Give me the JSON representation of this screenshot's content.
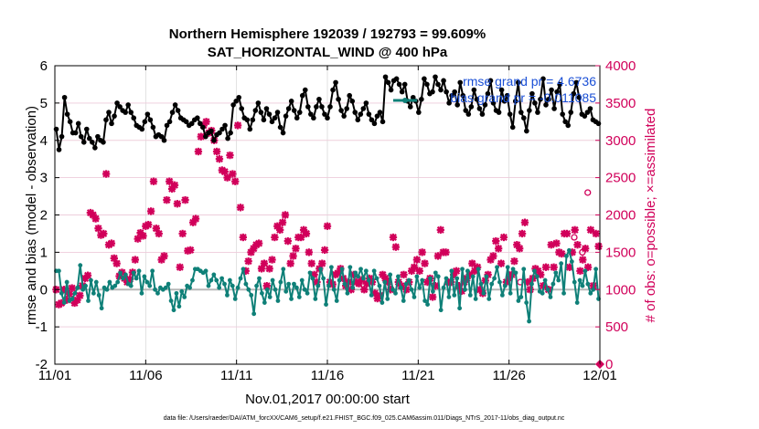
{
  "chart_data": {
    "type": "line",
    "title": "Northern Hemisphere 192039 / 192793 = 99.609%",
    "subtitle": "SAT_HORIZONTAL_WIND @ 400 hPa",
    "xlabel": "Nov.01,2017 00:00:00 start",
    "ylabel": "rmse and bias (model - observation)",
    "y2label": "# of obs: o=possible; ×=assimilated",
    "footnote": "data file: /Users/raeder/DAI/ATM_forcXX/CAM6_setup/f.e21.FHIST_BGC.f09_025.CAM6assim.011/Diags_NTrS_2017-11/obs_diag_output.nc",
    "xlim": [
      0,
      30
    ],
    "ylim": [
      -2,
      6
    ],
    "y2lim": [
      0,
      4000
    ],
    "xticks": [
      0,
      5,
      10,
      15,
      20,
      25,
      30
    ],
    "xticklabels": [
      "11/01",
      "11/06",
      "11/11",
      "11/16",
      "11/21",
      "11/26",
      "12/01"
    ],
    "yticks": [
      -2,
      -1,
      0,
      1,
      2,
      3,
      4,
      5,
      6
    ],
    "yticklabels": [
      "-2",
      "-1",
      "0",
      "1",
      "2",
      "3",
      "4",
      "5",
      "6"
    ],
    "y2ticks": [
      0,
      500,
      1000,
      1500,
      2000,
      2500,
      3000,
      3500,
      4000
    ],
    "y2ticklabels": [
      "0",
      "500",
      "1000",
      "1500",
      "2000",
      "2500",
      "3000",
      "3500",
      "4000"
    ],
    "grid": true,
    "legend_position": "top-right",
    "colors": {
      "rmse": "#000000",
      "bias": "#0f8078",
      "obs": "#d1005a",
      "zero": "#b8b8b8",
      "legend_text": "#1a4fd6"
    },
    "series": [
      {
        "name": "rmse grand pr = 4.6736",
        "axis": "left",
        "values": [
          4.3,
          3.75,
          4.1,
          5.15,
          4.7,
          4.5,
          4.2,
          4.2,
          4.45,
          4.1,
          3.95,
          4.3,
          4.05,
          3.95,
          3.8,
          4.1,
          4.0,
          3.95,
          4.55,
          4.75,
          4.45,
          4.65,
          5.0,
          4.9,
          4.8,
          4.75,
          4.95,
          4.75,
          4.6,
          4.4,
          4.35,
          4.3,
          4.5,
          4.7,
          4.55,
          4.35,
          4.1,
          4.15,
          4.1,
          4.0,
          4.4,
          4.5,
          4.75,
          4.95,
          4.8,
          4.6,
          4.55,
          4.5,
          4.4,
          4.45,
          4.55,
          4.6,
          4.45,
          4.35,
          4.1,
          4.2,
          4.25,
          4.0,
          4.15,
          4.2,
          4.3,
          4.4,
          4.05,
          4.2,
          4.95,
          5.05,
          5.15,
          4.85,
          4.6,
          4.55,
          4.3,
          4.55,
          4.8,
          5.0,
          4.75,
          4.55,
          4.85,
          4.7,
          4.5,
          4.6,
          4.75,
          4.35,
          4.2,
          4.65,
          4.85,
          5.05,
          4.8,
          4.6,
          4.75,
          5.2,
          5.35,
          4.9,
          4.7,
          4.6,
          4.9,
          5.1,
          4.9,
          4.7,
          4.6,
          4.9,
          5.35,
          5.55,
          5.1,
          4.8,
          4.65,
          4.85,
          5.2,
          5.05,
          4.75,
          4.55,
          4.7,
          4.85,
          5.0,
          4.7,
          4.55,
          4.45,
          4.65,
          4.75,
          4.5,
          5.7,
          5.55,
          5.35,
          5.6,
          5.65,
          5.5,
          5.3,
          5.5,
          5.05,
          4.9,
          5.15,
          5.05,
          4.75,
          5.1,
          5.65,
          5.5,
          5.25,
          5.3,
          5.7,
          5.5,
          5.35,
          5.6,
          5.3,
          5.0,
          5.2,
          5.3,
          4.95,
          5.55,
          5.2,
          4.8,
          4.7,
          4.9,
          5.35,
          5.1,
          4.85,
          4.7,
          4.95,
          5.25,
          5.6,
          5.0,
          4.8,
          4.75,
          5.35,
          5.05,
          5.2,
          4.7,
          4.35,
          5.05,
          5.55,
          4.75,
          4.6,
          4.25,
          4.8,
          5.25,
          5.0,
          4.75,
          5.1,
          5.65,
          4.95,
          5.1,
          5.35,
          4.85,
          5.3,
          5.5,
          4.7,
          4.5,
          4.4,
          4.75,
          5.25,
          5.55,
          5.15,
          4.7,
          4.65,
          4.75,
          4.85,
          4.55,
          4.5,
          4.45
        ]
      },
      {
        "name": "bias grand pr = -0.011085",
        "axis": "left",
        "values": [
          0.5,
          0.5,
          -0.1,
          -0.35,
          0.2,
          -0.3,
          -0.25,
          -0.1,
          0.05,
          0.65,
          0.0,
          0.1,
          -0.3,
          0.25,
          -0.1,
          0.2,
          -0.15,
          -0.5,
          0.05,
          0.0,
          0.2,
          0.05,
          0.1,
          0.2,
          0.45,
          0.3,
          0.4,
          0.15,
          0.1,
          0.45,
          0.3,
          0.5,
          -0.1,
          0.35,
          0.2,
          0.1,
          0.5,
          0.0,
          -0.1,
          0.05,
          0.0,
          0.05,
          0.15,
          -0.3,
          -0.55,
          -0.1,
          -0.45,
          -0.05,
          -0.2,
          0.1,
          0.05,
          0.25,
          0.55,
          0.55,
          0.5,
          0.45,
          0.5,
          0.1,
          0.25,
          0.4,
          0.25,
          0.05,
          0.3,
          0.15,
          -0.15,
          0.25,
          0.1,
          -0.25,
          0.05,
          0.3,
          0.55,
          0.15,
          0.0,
          -0.15,
          -0.65,
          0.1,
          0.3,
          -0.1,
          -0.35,
          0.0,
          -0.2,
          0.25,
          0.0,
          -0.3,
          0.2,
          0.55,
          -0.05,
          0.15,
          -0.25,
          0.15,
          0.05,
          -0.2,
          0.25,
          0.0,
          -0.1,
          0.45,
          0.3,
          -0.25,
          0.1,
          0.55,
          0.3,
          -0.4,
          0.1,
          0.6,
          0.0,
          -0.3,
          0.25,
          0.55,
          0.15,
          -0.1,
          0.6,
          0.05,
          0.45,
          0.35,
          0.55,
          0.3,
          0.5,
          0.25,
          -0.15,
          0.5,
          0.3,
          0.1,
          -0.35,
          0.2,
          -0.25,
          0.4,
          0.0,
          -0.1,
          0.35,
          0.05,
          -0.3,
          0.15,
          0.25,
          0.0,
          -0.2,
          0.35,
          0.05,
          0.25,
          -0.3,
          -0.4,
          0.3,
          -0.05,
          0.45,
          0.35,
          -0.55,
          0.05,
          0.3,
          -0.2,
          0.5,
          -0.15,
          0.3,
          -0.5,
          0.55,
          0.0,
          0.5,
          -0.15,
          0.35,
          -0.25,
          0.55,
          0.15,
          -0.1,
          0.35,
          -0.25,
          0.15,
          0.3,
          0.6,
          0.2,
          -0.15,
          0.1,
          0.6,
          -0.1,
          0.55,
          0.45,
          -0.3,
          -0.2,
          0.55,
          -0.35,
          -0.85,
          0.15,
          0.5,
          0.35,
          -0.05,
          -0.1,
          0.25,
          0.0,
          -0.2,
          0.15,
          0.45,
          0.25,
          0.7,
          -0.1,
          0.9,
          1.05,
          0.75,
          0.2,
          -0.35,
          0.25,
          0.1,
          0.5,
          0.15,
          -0.1,
          0.0,
          0.55,
          -0.25
        ]
      },
      {
        "name": "obs assimilated (×)",
        "axis": "right",
        "values": [
          1000,
          800,
          820,
          1000,
          860,
          940,
          1020,
          820,
          860,
          920,
          1050,
          1150,
          1190,
          2030,
          2000,
          1950,
          1820,
          1730,
          1750,
          2550,
          1600,
          1620,
          1420,
          1350,
          1180,
          1230,
          1150,
          1100,
          1140,
          1230,
          1400,
          1680,
          1760,
          1720,
          1850,
          1870,
          2050,
          2450,
          1820,
          1750,
          1400,
          1450,
          2200,
          2450,
          2350,
          2400,
          2150,
          1300,
          1750,
          2200,
          1520,
          1530,
          1900,
          1950,
          2850,
          3050,
          3200,
          3250,
          3100,
          3130,
          3000,
          2850,
          2750,
          2600,
          2580,
          2500,
          2800,
          2550,
          2450,
          3200,
          2100,
          1700,
          1250,
          1380,
          1500,
          1550,
          1600,
          1620,
          1280,
          1350,
          1050,
          1280,
          1400,
          1700,
          1850,
          1800,
          1900,
          2000,
          1650,
          1350,
          1450,
          1550,
          1700,
          1700,
          1800,
          1750,
          1500,
          1350,
          1200,
          1100,
          1280,
          1350,
          1530,
          1850,
          1100,
          1070,
          1200,
          1220,
          1280,
          1150,
          1050,
          1100,
          1000,
          1200,
          1100,
          1080,
          1130,
          1000,
          1080,
          1150,
          1100,
          950,
          880,
          920,
          1200,
          1150,
          1100,
          1000,
          1700,
          1570,
          1100,
          1050,
          1200,
          1000,
          1100,
          1250,
          1300,
          1400,
          1250,
          1500,
          1350,
          1100,
          1150,
          900,
          1050,
          1450,
          1800,
          1500,
          1500,
          1100,
          1100,
          1200,
          1250,
          1050,
          980,
          1100,
          1150,
          1200,
          1350,
          1250,
          1300,
          1000,
          950,
          1120,
          1200,
          1400,
          1450,
          1650,
          1550,
          1350,
          1700,
          1100,
          1150,
          1200,
          1380,
          1600,
          1550,
          1750,
          1900,
          1100,
          1000,
          1150,
          1280,
          1250,
          1200,
          1050,
          1300,
          1000,
          1600,
          1300,
          1620,
          1500,
          1480,
          1750,
          1750,
          1300,
          1500,
          1800,
          1600,
          1250,
          1400,
          1550,
          1300,
          1800,
          1050,
          1750,
          1580
        ]
      },
      {
        "name": "obs possible (o)",
        "axis": "right",
        "values": [
          null,
          null,
          null,
          null,
          null,
          null,
          null,
          null,
          null,
          null,
          null,
          null,
          null,
          null,
          null,
          null,
          null,
          null,
          null,
          null,
          null,
          null,
          null,
          null,
          null,
          null,
          null,
          null,
          null,
          null,
          null,
          null,
          null,
          null,
          null,
          null,
          null,
          null,
          null,
          null,
          null,
          null,
          null,
          null,
          null,
          null,
          null,
          null,
          null,
          null,
          null,
          null,
          null,
          null,
          null,
          null,
          null,
          null,
          null,
          null,
          null,
          null,
          null,
          null,
          null,
          null,
          null,
          null,
          null,
          null,
          null,
          null,
          null,
          null,
          null,
          null,
          null,
          null,
          null,
          null,
          null,
          null,
          null,
          null,
          null,
          null,
          null,
          null,
          null,
          null,
          null,
          null,
          null,
          null,
          null,
          null,
          null,
          null,
          null,
          null,
          null,
          null,
          null,
          null,
          null,
          null,
          null,
          null,
          null,
          null,
          null,
          null,
          null,
          null,
          null,
          null,
          null,
          null,
          null,
          null,
          null,
          null,
          null,
          null,
          null,
          null,
          null,
          null,
          null,
          null,
          null,
          null,
          null,
          null,
          null,
          null,
          null,
          null,
          null,
          null,
          null,
          null,
          null,
          null,
          null,
          null,
          null,
          null,
          null,
          null,
          null,
          null,
          null,
          null,
          null,
          null,
          null,
          null,
          null,
          null,
          null,
          null,
          null,
          null,
          null,
          null,
          null,
          null,
          null,
          null,
          null,
          null,
          1100,
          null,
          null,
          null,
          null,
          null,
          null,
          null,
          null,
          null,
          null,
          null,
          null,
          null,
          null,
          null,
          null,
          null,
          null,
          null,
          1700,
          null,
          null,
          1500,
          null,
          2300,
          null,
          null,
          null,
          null
        ]
      }
    ]
  }
}
